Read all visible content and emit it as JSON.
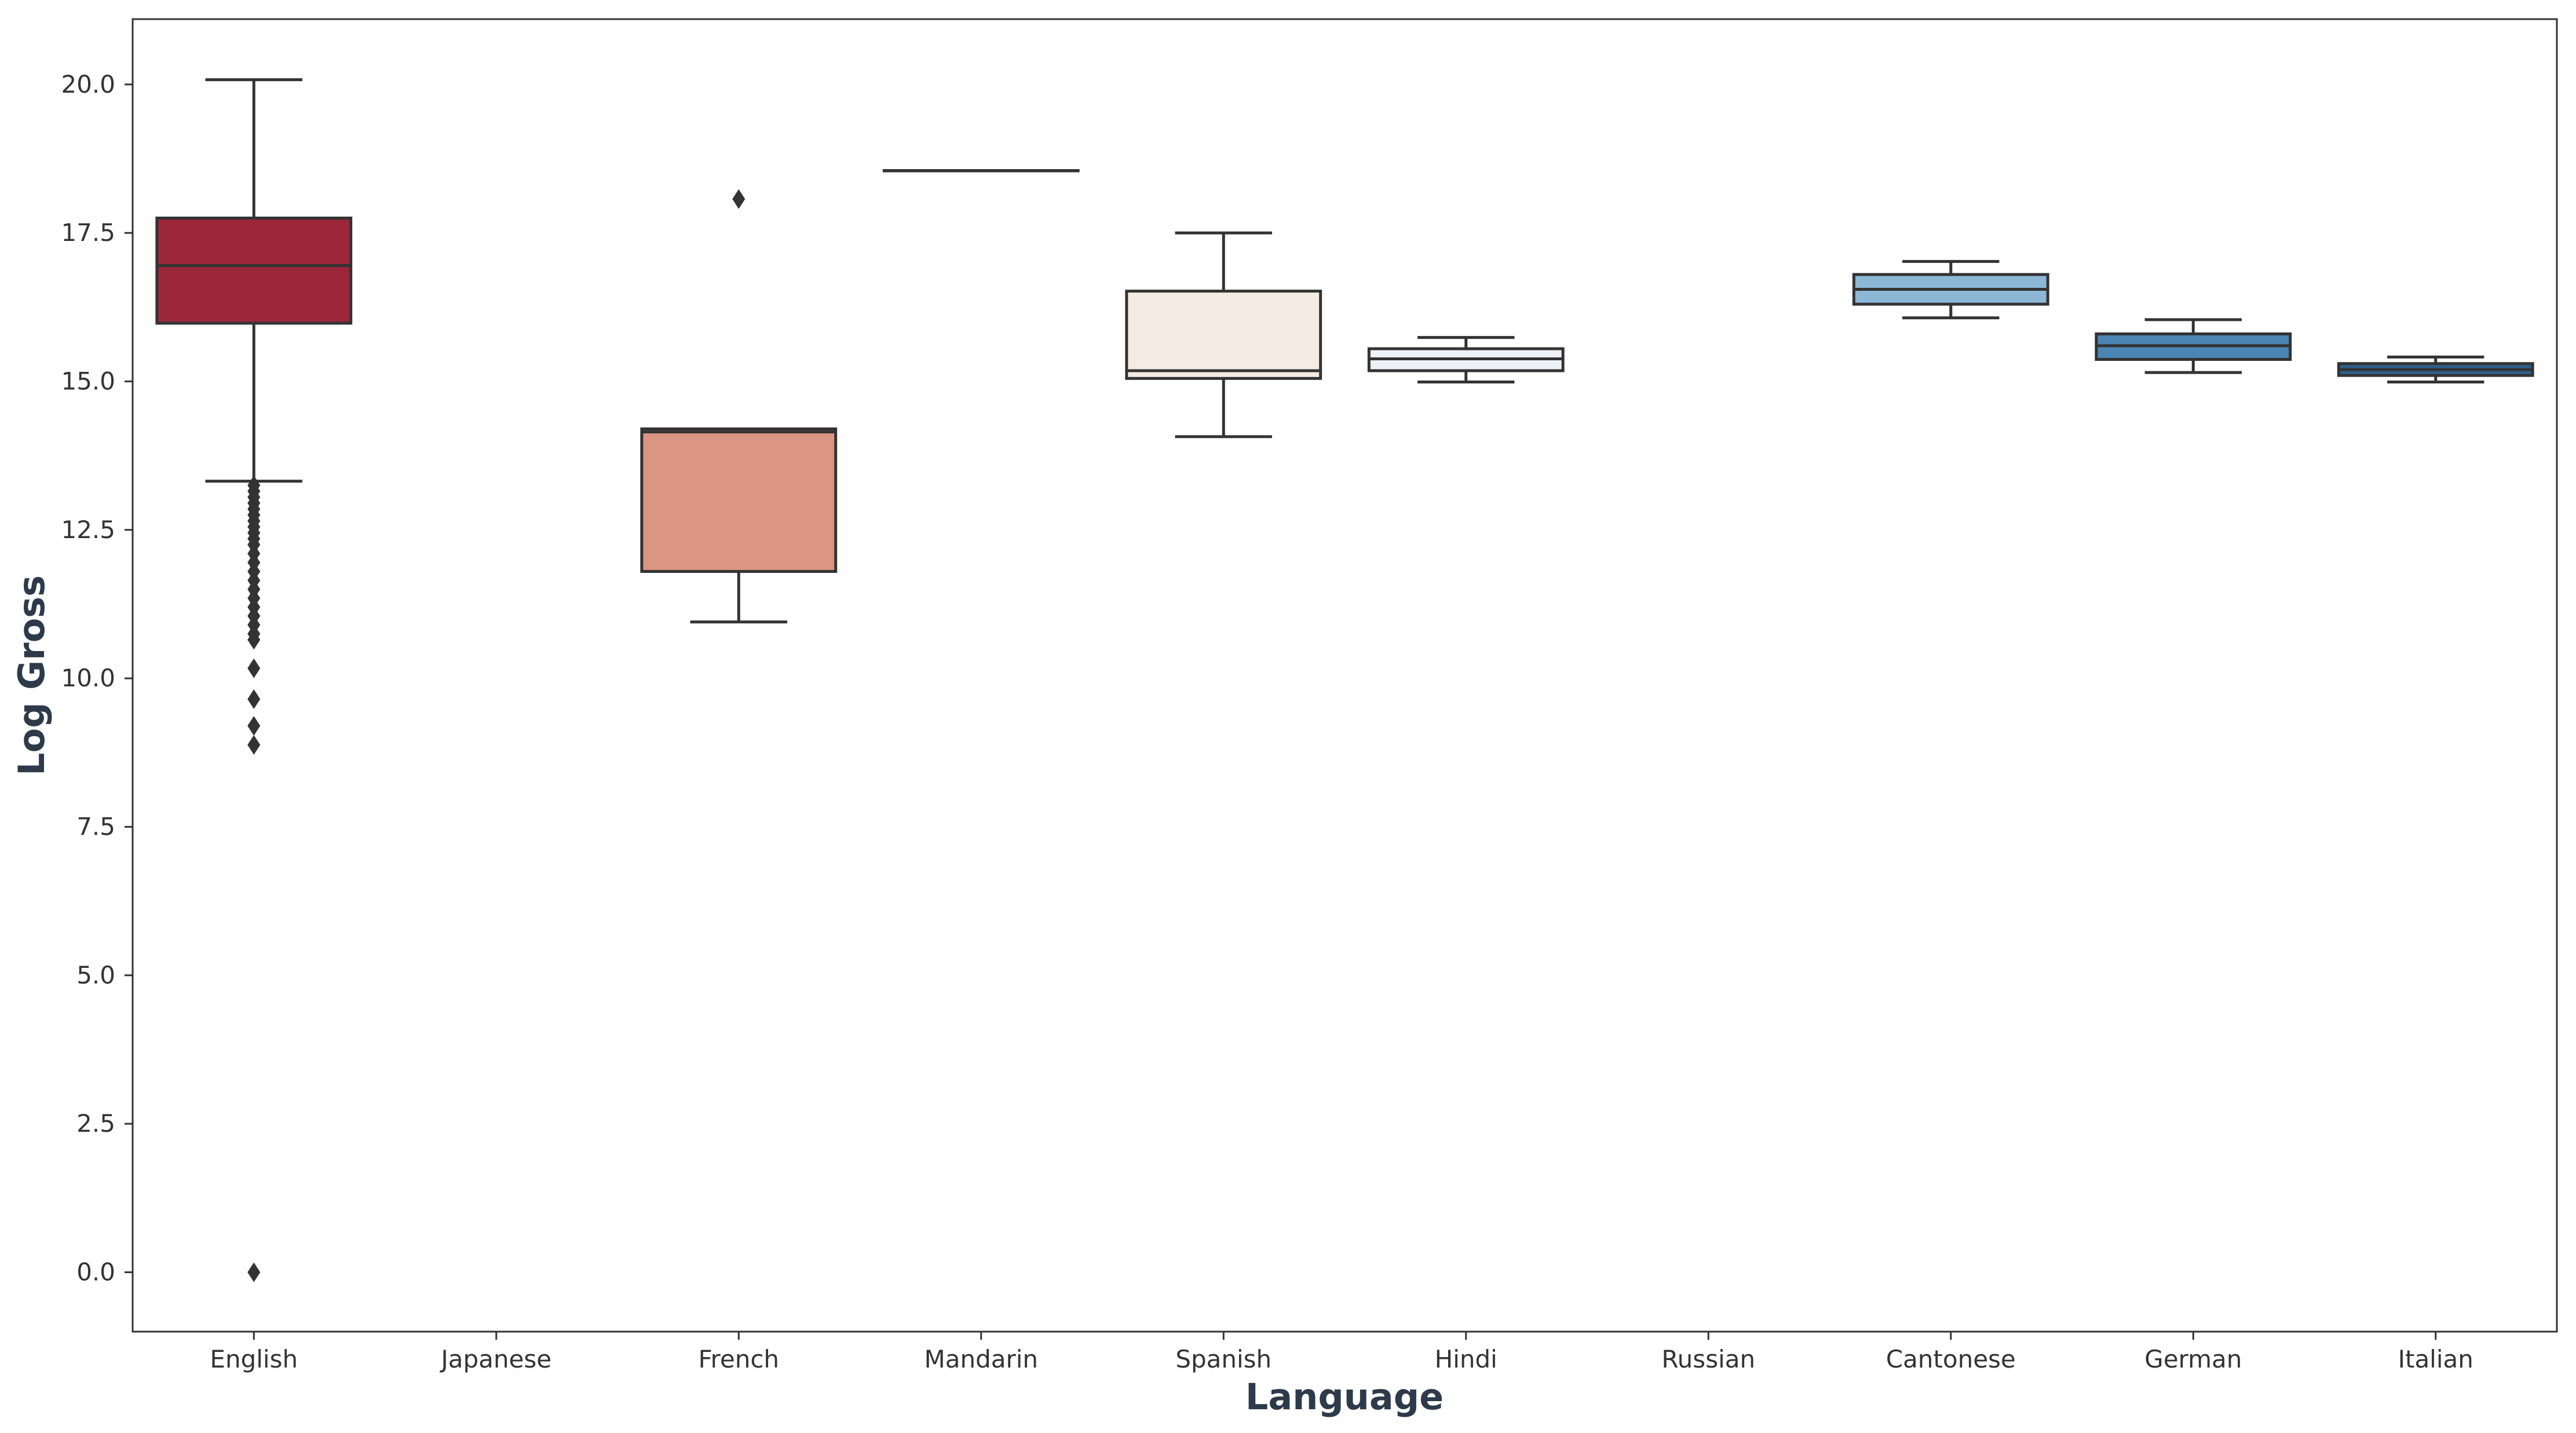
{
  "chart_data": {
    "type": "box",
    "xlabel": "Language",
    "ylabel": "Log Gross",
    "ylim": [
      -1.0,
      21.1
    ],
    "yticks": [
      0.0,
      2.5,
      5.0,
      7.5,
      10.0,
      12.5,
      15.0,
      17.5,
      20.0
    ],
    "ytick_labels": [
      "0.0",
      "2.5",
      "5.0",
      "7.5",
      "10.0",
      "12.5",
      "15.0",
      "17.5",
      "20.0"
    ],
    "grid": false,
    "legend": "none",
    "categories": [
      "English",
      "Japanese",
      "French",
      "Mandarin",
      "Spanish",
      "Hindi",
      "Russian",
      "Cantonese",
      "German",
      "Italian"
    ],
    "boxes": [
      {
        "category": "English",
        "color": "#9b2739",
        "q1": 15.98,
        "median": 16.95,
        "q3": 17.75,
        "whisker_low": 13.32,
        "whisker_high": 20.08,
        "outliers": [
          13.25,
          13.15,
          13.05,
          12.95,
          12.85,
          12.75,
          12.65,
          12.55,
          12.45,
          12.35,
          12.25,
          12.1,
          11.95,
          11.8,
          11.65,
          11.5,
          11.35,
          11.2,
          11.05,
          10.9,
          10.75,
          10.65,
          10.17,
          9.65,
          9.2,
          8.88,
          0.0
        ]
      },
      {
        "category": "Japanese",
        "color": null,
        "q1": null,
        "median": null,
        "q3": null,
        "whisker_low": null,
        "whisker_high": null,
        "outliers": []
      },
      {
        "category": "French",
        "color": "#da9683",
        "q1": 11.8,
        "median": 14.15,
        "q3": 14.2,
        "whisker_low": 10.95,
        "whisker_high": 14.2,
        "outliers": [
          18.07
        ]
      },
      {
        "category": "Mandarin",
        "color": "#f6e8e0",
        "q1": 18.55,
        "median": 18.55,
        "q3": 18.55,
        "whisker_low": 18.55,
        "whisker_high": 18.55,
        "outliers": []
      },
      {
        "category": "Spanish",
        "color": "#f5ebe3",
        "q1": 15.05,
        "median": 15.18,
        "q3": 16.52,
        "whisker_low": 14.07,
        "whisker_high": 17.5,
        "outliers": []
      },
      {
        "category": "Hindi",
        "color": "#eef2f6",
        "q1": 15.18,
        "median": 15.38,
        "q3": 15.55,
        "whisker_low": 14.99,
        "whisker_high": 15.74,
        "outliers": []
      },
      {
        "category": "Russian",
        "color": null,
        "q1": null,
        "median": null,
        "q3": null,
        "whisker_low": null,
        "whisker_high": null,
        "outliers": []
      },
      {
        "category": "Cantonese",
        "color": "#8cb8d6",
        "q1": 16.3,
        "median": 16.55,
        "q3": 16.8,
        "whisker_low": 16.07,
        "whisker_high": 17.02,
        "outliers": []
      },
      {
        "category": "German",
        "color": "#4a85b3",
        "q1": 15.37,
        "median": 15.6,
        "q3": 15.8,
        "whisker_low": 15.15,
        "whisker_high": 16.04,
        "outliers": []
      },
      {
        "category": "Italian",
        "color": "#2e5f8c",
        "q1": 15.1,
        "median": 15.2,
        "q3": 15.3,
        "whisker_low": 14.99,
        "whisker_high": 15.41,
        "outliers": []
      }
    ]
  }
}
